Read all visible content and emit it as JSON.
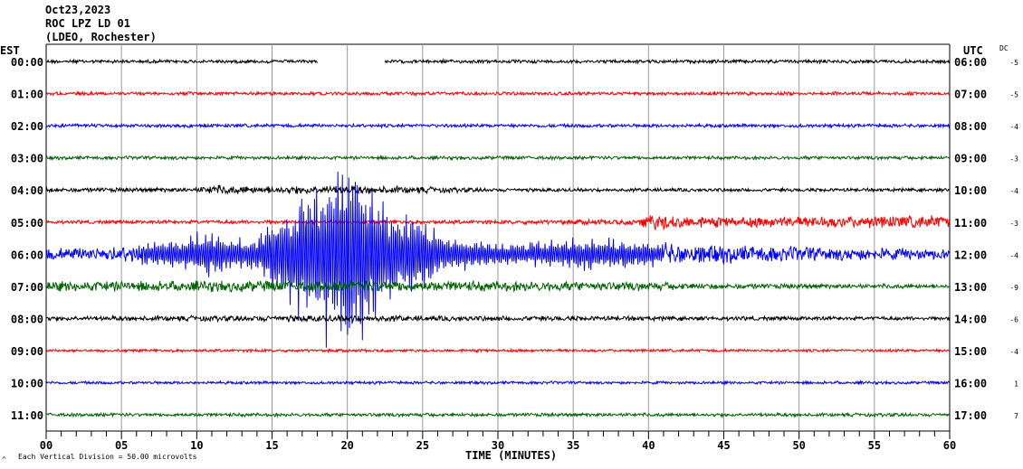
{
  "header": {
    "date": "Oct23,2023",
    "station": "ROC LPZ LD 01",
    "network": "(LDEO, Rochester)"
  },
  "chart_data": {
    "type": "line",
    "title": "Oct23,2023 ROC LPZ LD 01 (LDEO, Rochester)",
    "left_axis_label": "EST",
    "right_axis_label": "UTC",
    "dc_label": "DC",
    "xlabel": "TIME (MINUTES)",
    "xlim": [
      0,
      60
    ],
    "x_ticks": [
      "00",
      "05",
      "10",
      "15",
      "20",
      "25",
      "30",
      "35",
      "40",
      "45",
      "50",
      "55",
      "60"
    ],
    "minor_tick_interval_minutes": 1,
    "grid": true,
    "scale_note": "Each Vertical Division =   50.00 microvolts",
    "corner_mark": "A",
    "rows": [
      {
        "est": "00:00",
        "utc": "06:00",
        "dc": "-5",
        "color": "#000000",
        "gap": [
          18,
          22.5
        ],
        "envelope": [
          [
            0,
            0.12
          ],
          [
            60,
            0.12
          ]
        ]
      },
      {
        "est": "01:00",
        "utc": "07:00",
        "dc": "-5",
        "color": "#ff0000",
        "envelope": [
          [
            0,
            0.12
          ],
          [
            60,
            0.12
          ]
        ]
      },
      {
        "est": "02:00",
        "utc": "08:00",
        "dc": "-4",
        "color": "#0000ff",
        "envelope": [
          [
            0,
            0.12
          ],
          [
            60,
            0.12
          ]
        ]
      },
      {
        "est": "03:00",
        "utc": "09:00",
        "dc": "-3",
        "color": "#006400",
        "envelope": [
          [
            0,
            0.12
          ],
          [
            60,
            0.12
          ]
        ]
      },
      {
        "est": "04:00",
        "utc": "10:00",
        "dc": "-4",
        "color": "#000000",
        "envelope": [
          [
            0,
            0.14
          ],
          [
            10,
            0.16
          ],
          [
            11,
            0.35
          ],
          [
            14,
            0.25
          ],
          [
            20,
            0.3
          ],
          [
            26,
            0.2
          ],
          [
            30,
            0.12
          ],
          [
            60,
            0.12
          ]
        ]
      },
      {
        "est": "05:00",
        "utc": "11:00",
        "dc": "-3",
        "color": "#ff0000",
        "envelope": [
          [
            0,
            0.12
          ],
          [
            30,
            0.14
          ],
          [
            39,
            0.2
          ],
          [
            40,
            0.6
          ],
          [
            44,
            0.35
          ],
          [
            60,
            0.45
          ]
        ]
      },
      {
        "est": "06:00",
        "utc": "12:00",
        "dc": "-4",
        "color": "#0000ff",
        "envelope": [
          [
            0,
            0.4
          ],
          [
            5,
            0.5
          ],
          [
            8,
            1.1
          ],
          [
            11,
            1.8
          ],
          [
            12,
            1.2
          ],
          [
            14,
            1.3
          ],
          [
            15,
            3.2
          ],
          [
            18,
            5.5
          ],
          [
            20,
            7.5
          ],
          [
            21,
            7.0
          ],
          [
            23,
            3.5
          ],
          [
            25,
            3.0
          ],
          [
            26,
            1.5
          ],
          [
            28,
            1.0
          ],
          [
            31,
            0.8
          ],
          [
            34,
            1.0
          ],
          [
            36,
            1.3
          ],
          [
            39,
            1.0
          ],
          [
            42,
            0.7
          ],
          [
            50,
            0.5
          ],
          [
            60,
            0.35
          ]
        ]
      },
      {
        "est": "07:00",
        "utc": "13:00",
        "dc": "-9",
        "color": "#006400",
        "envelope": [
          [
            0,
            0.35
          ],
          [
            20,
            0.4
          ],
          [
            30,
            0.35
          ],
          [
            40,
            0.3
          ],
          [
            45,
            0.18
          ],
          [
            60,
            0.15
          ]
        ]
      },
      {
        "est": "08:00",
        "utc": "14:00",
        "dc": "-6",
        "color": "#000000",
        "envelope": [
          [
            0,
            0.15
          ],
          [
            15,
            0.2
          ],
          [
            20,
            0.25
          ],
          [
            26,
            0.18
          ],
          [
            60,
            0.12
          ]
        ]
      },
      {
        "est": "09:00",
        "utc": "15:00",
        "dc": "-4",
        "color": "#ff0000",
        "envelope": [
          [
            0,
            0.1
          ],
          [
            60,
            0.1
          ]
        ]
      },
      {
        "est": "10:00",
        "utc": "16:00",
        "dc": "1",
        "color": "#0000ff",
        "envelope": [
          [
            0,
            0.1
          ],
          [
            60,
            0.1
          ]
        ]
      },
      {
        "est": "11:00",
        "utc": "17:00",
        "dc": "7",
        "color": "#006400",
        "envelope": [
          [
            0,
            0.12
          ],
          [
            60,
            0.12
          ]
        ]
      }
    ]
  }
}
